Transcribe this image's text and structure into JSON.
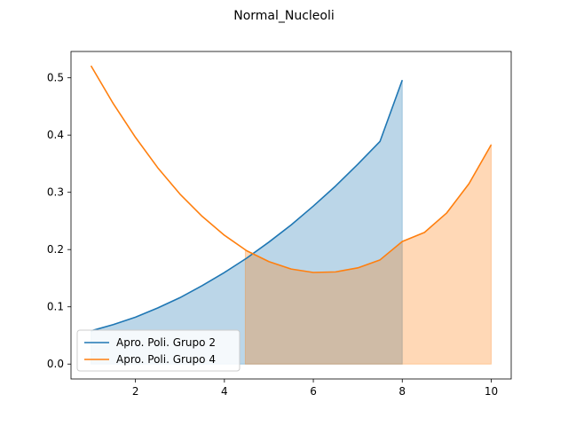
{
  "chart_data": {
    "type": "line",
    "title": "Normal_Nucleoli",
    "xlabel": "",
    "ylabel": "",
    "xlim": [
      0.55,
      10.45
    ],
    "ylim": [
      -0.026,
      0.546
    ],
    "xticks": [
      2,
      4,
      6,
      8,
      10
    ],
    "yticks": [
      0.0,
      0.1,
      0.2,
      0.3,
      0.4,
      0.5
    ],
    "ytick_labels": [
      "0.0",
      "0.1",
      "0.2",
      "0.3",
      "0.4",
      "0.5"
    ],
    "grid": false,
    "legend_position": "lower-left",
    "series": [
      {
        "name": "Apro. Poli. Grupo 2",
        "color": "#1f77b4",
        "fill_color": "#1f77b4",
        "x": [
          1,
          1.5,
          2,
          2.5,
          3,
          3.5,
          4,
          4.5,
          5,
          5.5,
          6,
          6.5,
          7,
          7.5,
          8
        ],
        "y": [
          0.058,
          0.069,
          0.082,
          0.098,
          0.116,
          0.137,
          0.16,
          0.185,
          0.213,
          0.243,
          0.276,
          0.311,
          0.349,
          0.389,
          0.496
        ],
        "fill_from_x": 1,
        "fill_to_x": 8
      },
      {
        "name": "Apro. Poli. Grupo 4",
        "color": "#ff7f0e",
        "fill_color": "#ff7f0e",
        "x": [
          1,
          1.5,
          2,
          2.5,
          3,
          3.5,
          4,
          4.5,
          5,
          5.5,
          6,
          6.5,
          7,
          7.5,
          8,
          8.5,
          9,
          9.5,
          10
        ],
        "y": [
          0.521,
          0.455,
          0.396,
          0.343,
          0.297,
          0.258,
          0.225,
          0.198,
          0.179,
          0.166,
          0.16,
          0.161,
          0.168,
          0.182,
          0.214,
          0.23,
          0.264,
          0.315,
          0.383
        ],
        "fill_from_x": 4.47,
        "fill_to_x": 10
      }
    ]
  }
}
